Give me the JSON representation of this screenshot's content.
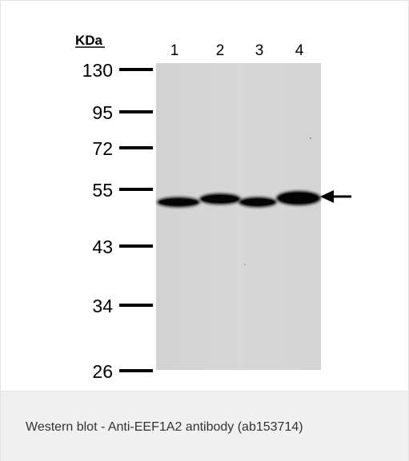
{
  "blot": {
    "unit_label": "KDa",
    "lanes": [
      "1",
      "2",
      "3",
      "4"
    ],
    "markers": [
      {
        "label": "130"
      },
      {
        "label": "95"
      },
      {
        "label": "72"
      },
      {
        "label": "55"
      },
      {
        "label": "43"
      },
      {
        "label": "34"
      },
      {
        "label": "26"
      }
    ]
  },
  "caption": "Western blot - Anti-EEF1A2 antibody (ab153714)"
}
